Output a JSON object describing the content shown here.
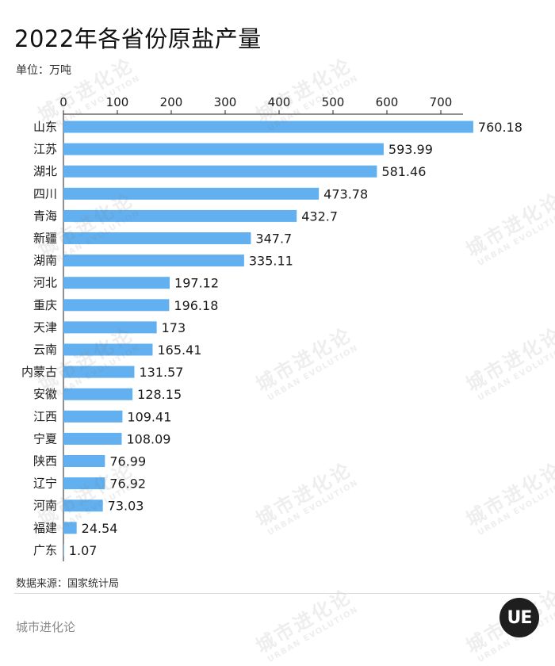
{
  "title": "2022年各省份原盐产量",
  "unit_label": "单位：万吨",
  "source": "数据来源：国家统计局",
  "brand": "城市进化论",
  "logo_text": "UE",
  "watermark": {
    "text": "城市进化论",
    "subtext": "URBAN EVOLUTION"
  },
  "colors": {
    "bar": "#62b0f0",
    "axis": "#222222",
    "text": "#1a1a1a"
  },
  "chart_data": {
    "type": "bar",
    "orientation": "horizontal",
    "categories": [
      "山东",
      "江苏",
      "湖北",
      "四川",
      "青海",
      "新疆",
      "湖南",
      "河北",
      "重庆",
      "天津",
      "云南",
      "内蒙古",
      "安徽",
      "江西",
      "宁夏",
      "陕西",
      "辽宁",
      "河南",
      "福建",
      "广东"
    ],
    "values": [
      760.18,
      593.99,
      581.46,
      473.78,
      432.7,
      347.7,
      335.11,
      197.12,
      196.18,
      173,
      165.41,
      131.57,
      128.15,
      109.41,
      108.09,
      76.99,
      76.92,
      73.03,
      24.54,
      1.07
    ],
    "value_labels": [
      "760.18",
      "593.99",
      "581.46",
      "473.78",
      "432.7",
      "347.7",
      "335.11",
      "197.12",
      "196.18",
      "173",
      "165.41",
      "131.57",
      "128.15",
      "109.41",
      "108.09",
      "76.99",
      "76.92",
      "73.03",
      "24.54",
      "1.07"
    ],
    "x_ticks": [
      0,
      100,
      200,
      300,
      400,
      500,
      600,
      700
    ],
    "x_tick_labels": [
      "0",
      "100",
      "200",
      "300",
      "400",
      "500",
      "600",
      "700"
    ],
    "xlim": [
      0,
      800
    ],
    "axis_position": "top",
    "grid": false,
    "legend": "none"
  }
}
